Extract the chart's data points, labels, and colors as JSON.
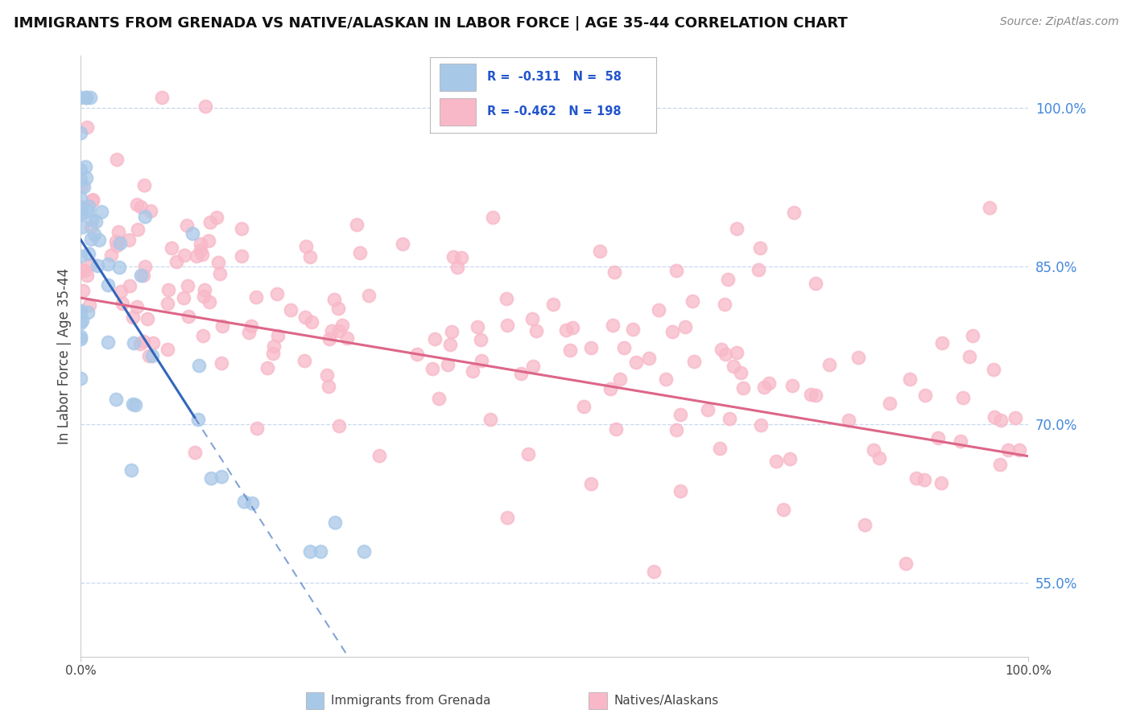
{
  "title": "IMMIGRANTS FROM GRENADA VS NATIVE/ALASKAN IN LABOR FORCE | AGE 35-44 CORRELATION CHART",
  "source": "Source: ZipAtlas.com",
  "ylabel": "In Labor Force | Age 35-44",
  "xlim": [
    0.0,
    1.0
  ],
  "ylim": [
    0.48,
    1.05
  ],
  "yticks": [
    0.55,
    0.7,
    0.85,
    1.0
  ],
  "ytick_labels": [
    "55.0%",
    "70.0%",
    "85.0%",
    "100.0%"
  ],
  "xticks": [
    0.0,
    1.0
  ],
  "xtick_labels": [
    "0.0%",
    "100.0%"
  ],
  "blue_color": "#a8c8e8",
  "pink_color": "#f8b8c8",
  "trend_blue": "#3366bb",
  "trend_pink": "#dd6688",
  "background": "#ffffff",
  "grid_color": "#c8d8f0"
}
